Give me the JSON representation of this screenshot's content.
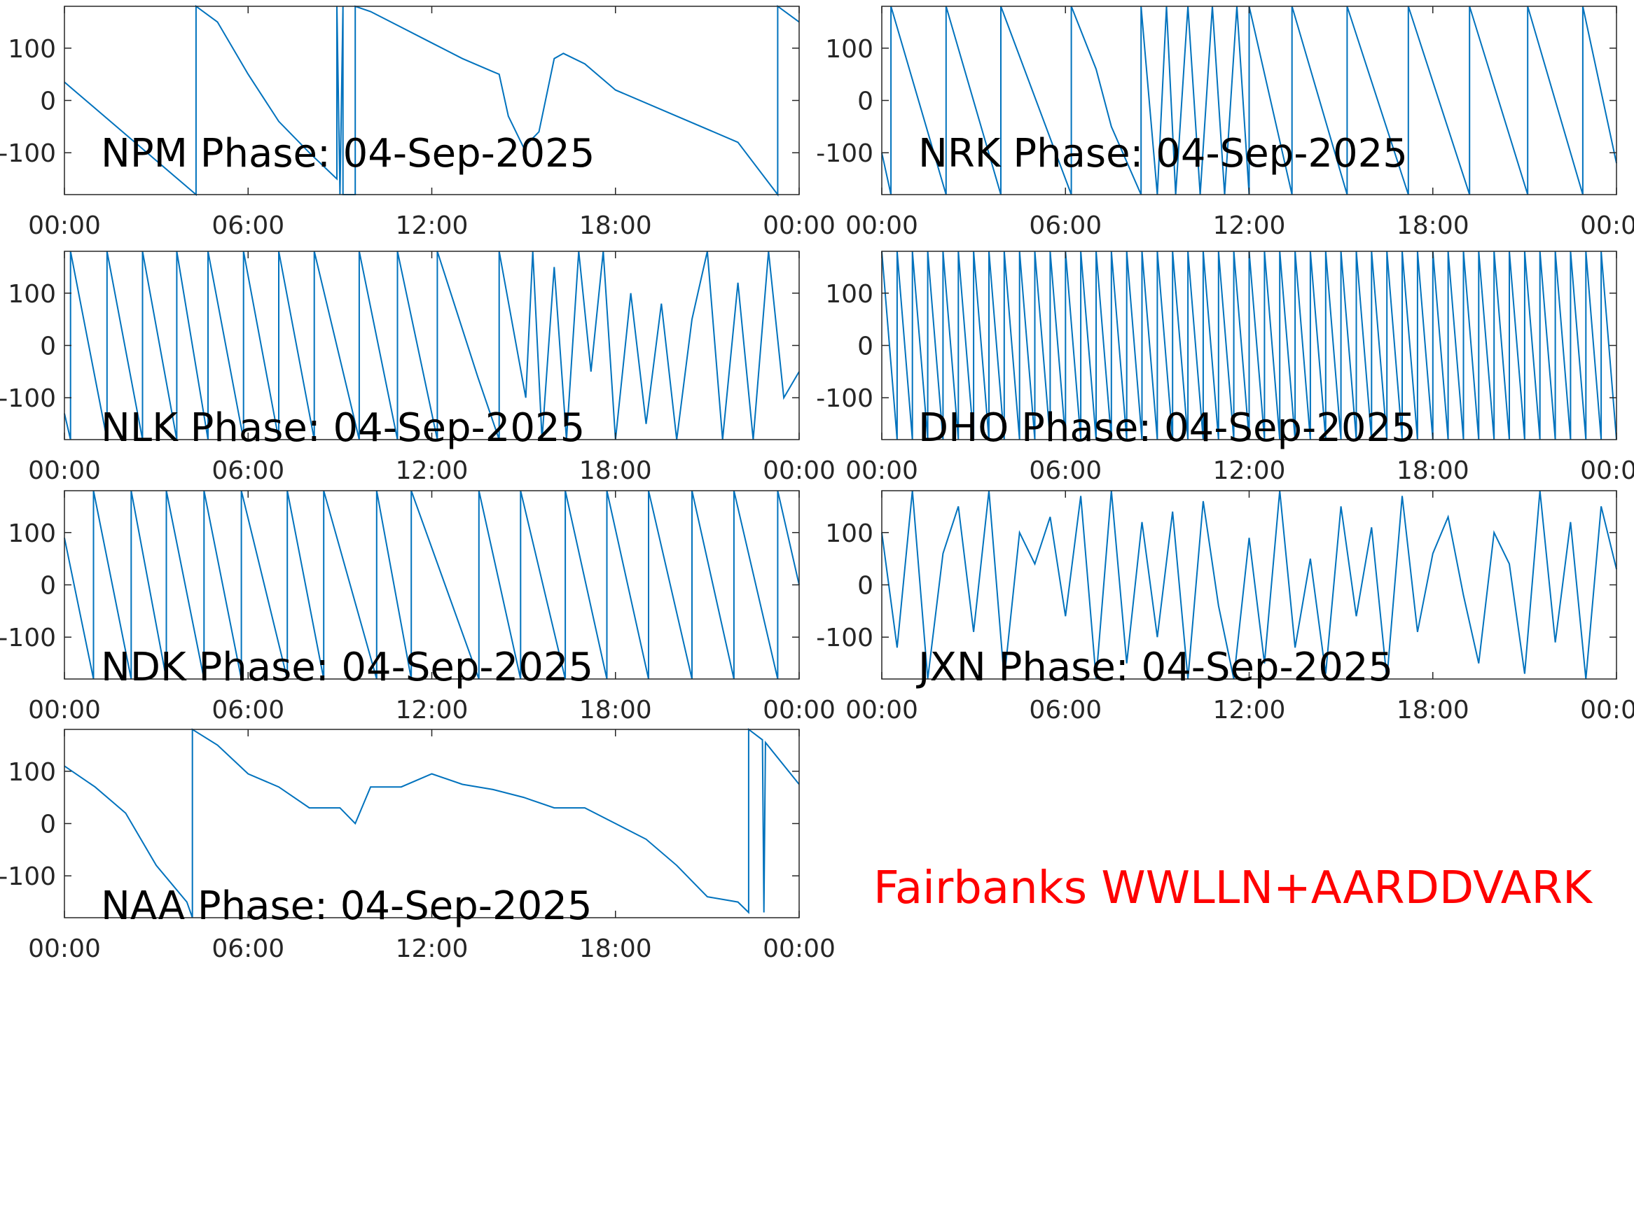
{
  "chart_data": [
    {
      "type": "line",
      "title": "NPM Phase: 04-Sep-2025",
      "color": "#0072bd",
      "xlim": [
        0,
        24
      ],
      "ylim": [
        -180,
        180
      ],
      "xticks": [
        {
          "value": 0,
          "label": "00:00"
        },
        {
          "value": 6,
          "label": "06:00"
        },
        {
          "value": 12,
          "label": "12:00"
        },
        {
          "value": 18,
          "label": "18:00"
        },
        {
          "value": 24,
          "label": "00:00"
        }
      ],
      "yticks": [
        -100,
        0,
        100
      ],
      "x": [
        0,
        4.3,
        4.3,
        5,
        6,
        7,
        8,
        8.9,
        8.9,
        9.0,
        9.1,
        9.1,
        9.5,
        9.5,
        10,
        11,
        12,
        13,
        14,
        14.2,
        14.5,
        15,
        15.5,
        16,
        16.3,
        17,
        18,
        20,
        22,
        23.3,
        23.3,
        24
      ],
      "values": [
        35,
        -180,
        180,
        150,
        50,
        -40,
        -100,
        -150,
        180,
        -180,
        180,
        -180,
        -180,
        180,
        170,
        140,
        110,
        80,
        55,
        50,
        -30,
        -90,
        -60,
        80,
        90,
        70,
        20,
        -30,
        -80,
        -180,
        180,
        150
      ]
    },
    {
      "type": "line",
      "title": "NRK Phase: 04-Sep-2025",
      "color": "#0072bd",
      "xlim": [
        0,
        24
      ],
      "ylim": [
        -180,
        180
      ],
      "xticks": [
        {
          "value": 0,
          "label": "00:00"
        },
        {
          "value": 6,
          "label": "06:00"
        },
        {
          "value": 12,
          "label": "12:00"
        },
        {
          "value": 18,
          "label": "18:00"
        },
        {
          "value": 24,
          "label": "00:00"
        }
      ],
      "yticks": [
        -100,
        0,
        100
      ],
      "x": [
        0,
        0.3,
        0.3,
        2.1,
        2.1,
        3.89,
        3.89,
        6.19,
        6.19,
        7,
        7.5,
        8.47,
        8.47,
        9,
        9.3,
        9.6,
        10,
        10.4,
        10.8,
        11.2,
        11.6,
        12,
        12,
        13.4,
        13.4,
        15.2,
        15.2,
        17.2,
        17.2,
        19.2,
        19.2,
        21.1,
        21.1,
        22.9,
        22.9,
        24
      ],
      "values": [
        -100,
        -180,
        180,
        -180,
        180,
        -180,
        180,
        -180,
        180,
        60,
        -50,
        -180,
        180,
        -180,
        180,
        -180,
        180,
        -180,
        180,
        -180,
        180,
        -180,
        180,
        -180,
        180,
        -180,
        180,
        -180,
        180,
        -180,
        180,
        -180,
        180,
        -180,
        180,
        -120
      ]
    },
    {
      "type": "line",
      "title": "NLK Phase: 04-Sep-2025",
      "color": "#0072bd",
      "xlim": [
        0,
        24
      ],
      "ylim": [
        -180,
        180
      ],
      "xticks": [
        {
          "value": 0,
          "label": "00:00"
        },
        {
          "value": 6,
          "label": "06:00"
        },
        {
          "value": 12,
          "label": "12:00"
        },
        {
          "value": 18,
          "label": "18:00"
        },
        {
          "value": 24,
          "label": "00:00"
        }
      ],
      "yticks": [
        -100,
        0,
        100
      ],
      "x": [
        0,
        0.2,
        0.2,
        1.39,
        1.39,
        2.55,
        2.55,
        3.67,
        3.67,
        4.69,
        4.69,
        5.85,
        5.85,
        7.0,
        7.0,
        8.16,
        8.16,
        9.63,
        9.63,
        10.88,
        10.88,
        12.18,
        12.18,
        13.5,
        14.2,
        14.2,
        15.07,
        15.3,
        15.6,
        16,
        16.4,
        16.8,
        17.2,
        17.6,
        18,
        18.5,
        19,
        19.5,
        20,
        20.5,
        21,
        21.5,
        22,
        22.5,
        23,
        23.5,
        24
      ],
      "values": [
        -130,
        -180,
        180,
        -180,
        180,
        -180,
        180,
        -180,
        180,
        -180,
        180,
        -180,
        180,
        -180,
        180,
        -180,
        180,
        -180,
        180,
        -180,
        180,
        -180,
        180,
        -60,
        -180,
        180,
        -100,
        180,
        -180,
        150,
        -180,
        180,
        -50,
        180,
        -180,
        100,
        -150,
        80,
        -180,
        50,
        180,
        -180,
        120,
        -180,
        180,
        -100,
        -50
      ]
    },
    {
      "type": "line",
      "title": "DHO Phase: 04-Sep-2025",
      "color": "#0072bd",
      "xlim": [
        0,
        24
      ],
      "ylim": [
        -180,
        180
      ],
      "xticks": [
        {
          "value": 0,
          "label": "00:00"
        },
        {
          "value": 6,
          "label": "06:00"
        },
        {
          "value": 12,
          "label": "12:00"
        },
        {
          "value": 18,
          "label": "18:00"
        },
        {
          "value": 24,
          "label": "00:00"
        }
      ],
      "yticks": [
        -100,
        0,
        100
      ],
      "x": [
        0,
        0.5,
        0.5,
        1,
        1,
        1.5,
        1.5,
        2,
        2,
        2.5,
        2.5,
        3,
        3,
        3.5,
        3.5,
        4,
        4,
        4.5,
        4.5,
        5,
        5,
        5.5,
        5.5,
        6,
        6,
        6.5,
        6.5,
        7,
        7,
        7.5,
        7.5,
        8,
        8,
        8.5,
        8.5,
        9,
        9,
        9.5,
        9.5,
        10,
        10,
        10.5,
        10.5,
        11,
        11,
        11.5,
        11.5,
        12,
        12,
        12.5,
        12.5,
        13,
        13,
        13.5,
        13.5,
        14,
        14,
        14.5,
        14.5,
        15,
        15,
        15.5,
        15.5,
        16,
        16,
        16.5,
        16.5,
        17,
        17,
        17.5,
        17.5,
        18,
        18,
        18.5,
        18.5,
        19,
        19,
        19.5,
        19.5,
        20,
        20,
        20.5,
        20.5,
        21,
        21,
        21.5,
        21.5,
        22,
        22,
        22.5,
        22.5,
        23,
        23,
        23.5,
        23.5,
        24
      ],
      "values": [
        180,
        -180,
        180,
        -180,
        180,
        -180,
        180,
        -180,
        180,
        -180,
        180,
        -180,
        180,
        -180,
        180,
        -180,
        180,
        -180,
        180,
        -180,
        180,
        -180,
        180,
        -180,
        180,
        -180,
        180,
        -180,
        180,
        -180,
        180,
        -180,
        180,
        -180,
        180,
        -180,
        180,
        -180,
        180,
        -180,
        180,
        -180,
        180,
        -180,
        180,
        -180,
        180,
        -180,
        180,
        -180,
        180,
        -180,
        180,
        -180,
        180,
        -180,
        180,
        -180,
        180,
        -180,
        180,
        -180,
        180,
        -180,
        180,
        -180,
        180,
        -180,
        180,
        -180,
        180,
        -180,
        180,
        -180,
        180,
        -180,
        180,
        -180,
        180,
        -180,
        180,
        -180,
        180,
        -180,
        180,
        -180,
        180,
        -180,
        180,
        -180,
        180,
        -180,
        180,
        -180,
        180,
        -180
      ]
    },
    {
      "type": "line",
      "title": "NDK Phase: 04-Sep-2025",
      "color": "#0072bd",
      "xlim": [
        0,
        24
      ],
      "ylim": [
        -180,
        180
      ],
      "xticks": [
        {
          "value": 0,
          "label": "00:00"
        },
        {
          "value": 6,
          "label": "06:00"
        },
        {
          "value": 12,
          "label": "12:00"
        },
        {
          "value": 18,
          "label": "18:00"
        },
        {
          "value": 24,
          "label": "00:00"
        }
      ],
      "yticks": [
        -100,
        0,
        100
      ],
      "x": [
        0,
        0.95,
        0.95,
        2.18,
        2.18,
        3.33,
        3.33,
        4.56,
        4.56,
        5.78,
        5.78,
        7.28,
        7.28,
        8.47,
        8.47,
        10.2,
        10.2,
        11.33,
        11.33,
        13.54,
        13.54,
        14.9,
        14.9,
        16.36,
        16.36,
        17.72,
        17.72,
        19.08,
        19.08,
        20.5,
        20.5,
        21.87,
        21.87,
        23.3,
        23.3,
        24
      ],
      "values": [
        90,
        -180,
        180,
        -180,
        180,
        -180,
        180,
        -180,
        180,
        -180,
        180,
        -180,
        180,
        -180,
        180,
        -180,
        180,
        -180,
        180,
        -180,
        180,
        -180,
        180,
        -180,
        180,
        -180,
        180,
        -180,
        180,
        -180,
        180,
        -180,
        180,
        -180,
        180,
        0
      ]
    },
    {
      "type": "line",
      "title": "JXN Phase: 04-Sep-2025",
      "color": "#0072bd",
      "xlim": [
        0,
        24
      ],
      "ylim": [
        -180,
        180
      ],
      "xticks": [
        {
          "value": 0,
          "label": "00:00"
        },
        {
          "value": 6,
          "label": "06:00"
        },
        {
          "value": 12,
          "label": "12:00"
        },
        {
          "value": 18,
          "label": "18:00"
        },
        {
          "value": 24,
          "label": "00:00"
        }
      ],
      "yticks": [
        -100,
        0,
        100
      ],
      "x": [
        0,
        0.5,
        1,
        1.5,
        2,
        2.5,
        3,
        3.5,
        4,
        4.5,
        5,
        5.5,
        6,
        6.5,
        7,
        7.5,
        8,
        8.5,
        9,
        9.5,
        10,
        10.5,
        11,
        11.5,
        12,
        12.5,
        13,
        13.5,
        14,
        14.5,
        15,
        15.5,
        16,
        16.5,
        17,
        17.5,
        18,
        18.5,
        19,
        19.5,
        20,
        20.5,
        21,
        21.5,
        22,
        22.5,
        23,
        23.5,
        24
      ],
      "values": [
        100,
        -120,
        180,
        -180,
        60,
        150,
        -90,
        180,
        -180,
        100,
        40,
        130,
        -60,
        170,
        -180,
        180,
        -150,
        120,
        -100,
        140,
        -180,
        160,
        -40,
        -180,
        90,
        -150,
        180,
        -120,
        50,
        -170,
        150,
        -60,
        110,
        -180,
        170,
        -90,
        60,
        130,
        -20,
        -150,
        100,
        40,
        -170,
        180,
        -110,
        120,
        -180,
        150,
        30
      ]
    },
    {
      "type": "line",
      "title": "NAA Phase: 04-Sep-2025",
      "color": "#0072bd",
      "xlim": [
        0,
        24
      ],
      "ylim": [
        -180,
        180
      ],
      "xticks": [
        {
          "value": 0,
          "label": "00:00"
        },
        {
          "value": 6,
          "label": "06:00"
        },
        {
          "value": 12,
          "label": "12:00"
        },
        {
          "value": 18,
          "label": "18:00"
        },
        {
          "value": 24,
          "label": "00:00"
        }
      ],
      "yticks": [
        -100,
        0,
        100
      ],
      "x": [
        0,
        1,
        2,
        3,
        4,
        4.18,
        4.18,
        5,
        6,
        7,
        8,
        9,
        9.5,
        10,
        11,
        12,
        13,
        14,
        15,
        16,
        17,
        18,
        19,
        20,
        21,
        22,
        22.35,
        22.35,
        22.8,
        22.85,
        22.9,
        24
      ],
      "values": [
        110,
        70,
        20,
        -80,
        -150,
        -180,
        180,
        150,
        95,
        70,
        30,
        30,
        0,
        70,
        70,
        95,
        75,
        65,
        50,
        30,
        30,
        0,
        -30,
        -80,
        -140,
        -150,
        -170,
        180,
        160,
        -170,
        155,
        75
      ]
    }
  ],
  "annotation": "Fairbanks WWLLN+AARDDVARK"
}
